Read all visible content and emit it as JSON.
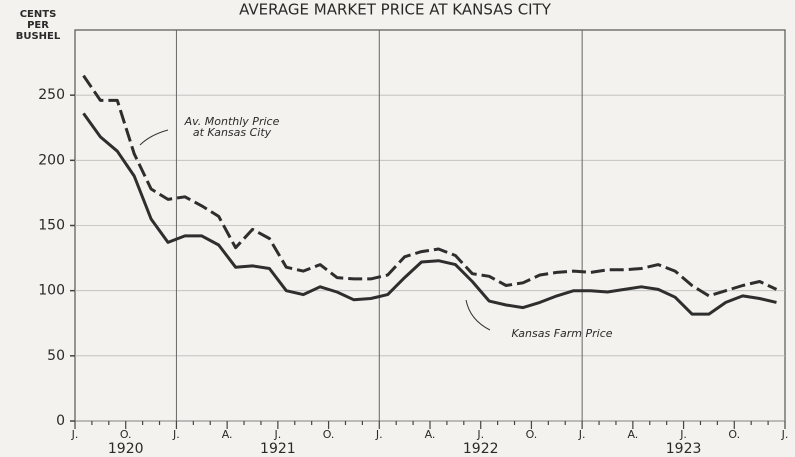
{
  "chart_data": {
    "type": "line",
    "title": "AVERAGE MARKET PRICE AT KANSAS CITY",
    "y_label": [
      "CENTS",
      "PER",
      "BUSHEL"
    ],
    "categories": [
      "J.",
      null,
      null,
      "O.",
      null,
      null,
      "J.",
      null,
      null,
      "A.",
      null,
      null,
      "J.",
      null,
      null,
      "O.",
      null,
      null,
      "J.",
      null,
      null,
      "A.",
      null,
      null,
      "J.",
      null,
      null,
      "O.",
      null,
      null,
      "J.",
      null,
      null,
      "A.",
      null,
      null,
      "J.",
      null,
      null,
      "O.",
      null,
      null,
      "J."
    ],
    "year_labels": [
      "1920",
      "1921",
      "1922",
      "1923"
    ],
    "series": [
      {
        "color": "#2e2e2e",
        "dash": true,
        "values": [
          265,
          246,
          246,
          205,
          178,
          170,
          172,
          165,
          157,
          133,
          147,
          140,
          118,
          115,
          120,
          110,
          109,
          109,
          112,
          126,
          130,
          132,
          127,
          113,
          111,
          104,
          106,
          112,
          114,
          115,
          114,
          116,
          116,
          117,
          120,
          115,
          104,
          96,
          100,
          104,
          107,
          101,
          null
        ]
      },
      {
        "color": "#2e2e2e",
        "dash": false,
        "values": [
          236,
          218,
          207,
          188,
          155,
          137,
          142,
          142,
          135,
          118,
          119,
          117,
          100,
          97,
          103,
          99,
          93,
          94,
          97,
          110,
          122,
          123,
          120,
          107,
          92,
          89,
          87,
          91,
          96,
          100,
          100,
          99,
          101,
          103,
          101,
          95,
          82,
          82,
          91,
          96,
          94,
          91,
          null
        ]
      }
    ],
    "annotations": [
      [
        "Av. Monthly Price",
        "at Kansas City"
      ],
      [
        "Kansas Farm Price"
      ]
    ],
    "ylim": [
      0,
      300
    ],
    "yticks": [
      0,
      50,
      100,
      150,
      200,
      250
    ],
    "grid": true
  }
}
